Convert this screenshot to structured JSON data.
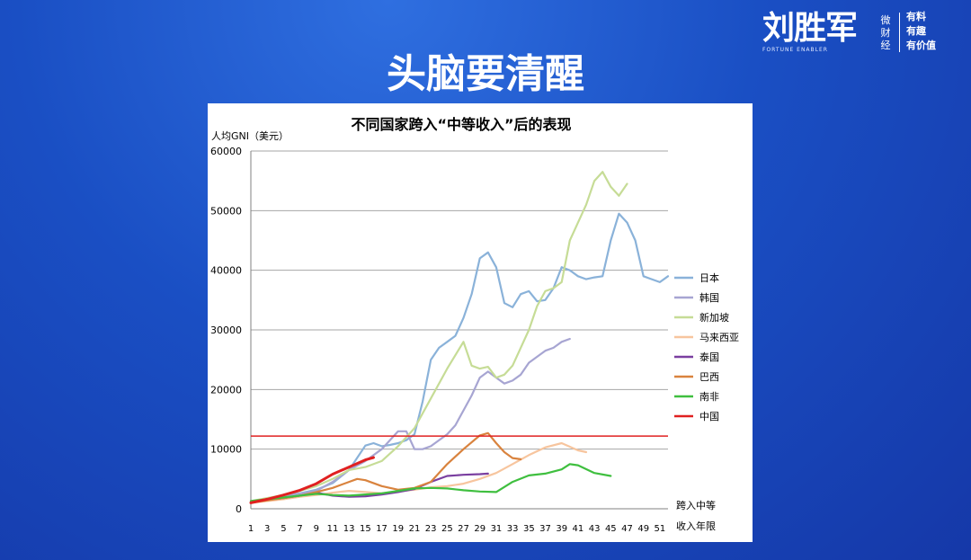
{
  "brand": {
    "logo": "刘胜军",
    "vertical": [
      "微",
      "财",
      "经"
    ],
    "sub": "FORTUNE ENABLER",
    "tags": [
      "有料",
      "有趣",
      "有价值"
    ]
  },
  "slide_title": "头脑要清醒",
  "colors": {
    "日本": "#8ab2d9",
    "韩国": "#a7a5d2",
    "新加坡": "#c6dc96",
    "马来西亚": "#f7c59e",
    "泰国": "#7a3fa0",
    "巴西": "#d9833e",
    "南非": "#3fbf3f",
    "中国": "#e02020",
    "threshold": "#e02020",
    "grid": "#a6a6a6"
  },
  "chart_data": {
    "type": "line",
    "title": "不同国家跨入“中等收入”后的表现",
    "ylabel": "人均GNI（美元）",
    "xlabel": [
      "跨入中等",
      "收入年限"
    ],
    "ylim": [
      0,
      60000
    ],
    "yticks": [
      0,
      10000,
      20000,
      30000,
      40000,
      50000,
      60000
    ],
    "xlim": [
      1,
      52
    ],
    "xticks": [
      1,
      3,
      5,
      7,
      9,
      11,
      13,
      15,
      17,
      19,
      21,
      23,
      25,
      27,
      29,
      31,
      33,
      35,
      37,
      39,
      41,
      43,
      45,
      47,
      49,
      51
    ],
    "grid": true,
    "legend_position": "right",
    "threshold": 12200,
    "series": [
      {
        "name": "日本",
        "x": [
          1,
          3,
          5,
          7,
          9,
          11,
          13,
          15,
          16,
          17,
          18,
          19,
          20,
          21,
          22,
          23,
          24,
          25,
          26,
          27,
          28,
          29,
          30,
          31,
          32,
          33,
          34,
          35,
          36,
          37,
          38,
          39,
          40,
          41,
          42,
          43,
          44,
          45,
          46,
          47,
          48,
          49,
          50,
          51,
          52
        ],
        "y": [
          1200,
          1700,
          2200,
          2600,
          3200,
          4300,
          6500,
          10600,
          11000,
          10500,
          10700,
          11000,
          11500,
          12500,
          18000,
          25000,
          27000,
          28000,
          29000,
          32000,
          36000,
          42000,
          43000,
          40500,
          34500,
          33800,
          36000,
          36500,
          34800,
          35000,
          37000,
          40500,
          40000,
          39000,
          38500,
          38800,
          39000,
          45000,
          49500,
          48000,
          45000,
          39000,
          38500,
          38000,
          39000
        ]
      },
      {
        "name": "韩国",
        "x": [
          1,
          3,
          5,
          7,
          9,
          11,
          13,
          15,
          17,
          19,
          20,
          21,
          22,
          23,
          24,
          25,
          26,
          27,
          28,
          29,
          30,
          31,
          32,
          33,
          34,
          35,
          36,
          37,
          38,
          39,
          40
        ],
        "y": [
          1000,
          1500,
          2000,
          2500,
          3000,
          4500,
          6500,
          8000,
          10000,
          13000,
          13000,
          10000,
          10000,
          10500,
          11500,
          12500,
          14000,
          16500,
          19000,
          22000,
          23000,
          22000,
          21000,
          21500,
          22500,
          24500,
          25500,
          26500,
          27000,
          28000,
          28500
        ]
      },
      {
        "name": "新加坡",
        "x": [
          1,
          3,
          5,
          7,
          9,
          11,
          13,
          15,
          17,
          19,
          21,
          23,
          25,
          27,
          28,
          29,
          30,
          31,
          32,
          33,
          34,
          35,
          36,
          37,
          38,
          39,
          40,
          41,
          42,
          43,
          44,
          45,
          46,
          47
        ],
        "y": [
          1300,
          1800,
          2300,
          3000,
          3800,
          5000,
          6500,
          7000,
          8000,
          10500,
          13500,
          18500,
          23500,
          28000,
          24000,
          23500,
          23800,
          22000,
          22500,
          24000,
          27000,
          30000,
          34000,
          36500,
          37000,
          38000,
          45000,
          48000,
          51000,
          55000,
          56500,
          54000,
          52500,
          54500
        ]
      },
      {
        "name": "马来西亚",
        "x": [
          1,
          3,
          5,
          7,
          9,
          11,
          13,
          15,
          17,
          19,
          21,
          23,
          25,
          27,
          29,
          31,
          33,
          35,
          37,
          39,
          41,
          42
        ],
        "y": [
          1000,
          1300,
          1600,
          2000,
          2300,
          2700,
          3000,
          2800,
          2600,
          2900,
          3200,
          3600,
          3800,
          4200,
          5000,
          6000,
          7500,
          9000,
          10300,
          11000,
          9800,
          9500
        ]
      },
      {
        "name": "泰国",
        "x": [
          1,
          3,
          5,
          7,
          9,
          11,
          13,
          15,
          17,
          19,
          21,
          23,
          25,
          27,
          29,
          30
        ],
        "y": [
          1200,
          1500,
          1800,
          2200,
          2700,
          2200,
          2000,
          2100,
          2400,
          2800,
          3300,
          4500,
          5500,
          5700,
          5800,
          5900
        ]
      },
      {
        "name": "巴西",
        "x": [
          1,
          3,
          5,
          7,
          9,
          11,
          13,
          14,
          15,
          17,
          19,
          21,
          23,
          25,
          27,
          29,
          30,
          31,
          32,
          33,
          34
        ],
        "y": [
          1000,
          1400,
          1800,
          2200,
          2800,
          3500,
          4500,
          5000,
          4800,
          3800,
          3200,
          3500,
          4500,
          7500,
          10000,
          12300,
          12700,
          11000,
          9500,
          8500,
          8300
        ]
      },
      {
        "name": "南非",
        "x": [
          1,
          3,
          5,
          7,
          9,
          11,
          13,
          15,
          17,
          19,
          21,
          23,
          25,
          27,
          29,
          31,
          33,
          35,
          37,
          39,
          40,
          41,
          43,
          45
        ],
        "y": [
          1300,
          1600,
          1900,
          2200,
          2500,
          2300,
          2200,
          2400,
          2600,
          3000,
          3400,
          3500,
          3400,
          3100,
          2900,
          2800,
          4500,
          5600,
          5900,
          6600,
          7500,
          7300,
          6000,
          5500
        ]
      },
      {
        "name": "中国",
        "x": [
          1,
          3,
          5,
          7,
          9,
          11,
          13,
          15,
          16
        ],
        "y": [
          1000,
          1600,
          2300,
          3100,
          4200,
          5800,
          7000,
          8200,
          8600
        ]
      }
    ]
  }
}
